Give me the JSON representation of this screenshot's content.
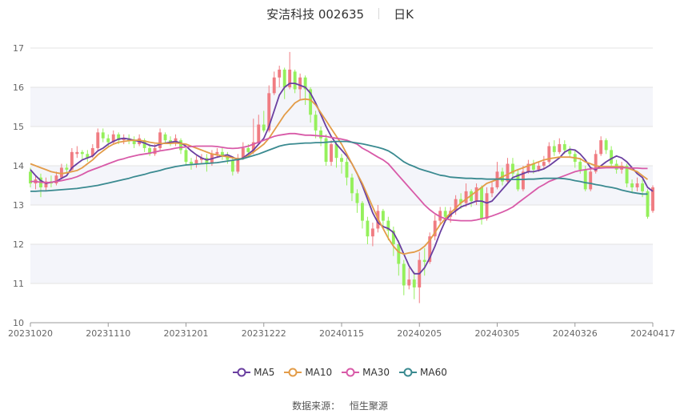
{
  "header": {
    "stock_name_code": "安洁科技 002635",
    "period": "日K"
  },
  "source": {
    "label": "数据来源：",
    "value": "恒生聚源"
  },
  "chart_data": {
    "type": "candlestick",
    "title": "安洁科技 002635",
    "ylim": [
      10,
      17
    ],
    "yticks": [
      "10",
      "11",
      "12",
      "13",
      "14",
      "15",
      "16",
      "17"
    ],
    "xticks": [
      {
        "label": "20231020",
        "index": 0
      },
      {
        "label": "20231110",
        "index": 15
      },
      {
        "label": "20231201",
        "index": 30
      },
      {
        "label": "20231222",
        "index": 45
      },
      {
        "label": "20240115",
        "index": 60
      },
      {
        "label": "20240205",
        "index": 75
      },
      {
        "label": "20240305",
        "index": 90
      },
      {
        "label": "20240326",
        "index": 105
      },
      {
        "label": "20240417",
        "index": 120
      }
    ],
    "up_color": "#f07c82",
    "down_color": "#95f05c",
    "candles": [
      [
        13.85,
        13.55,
        13.95,
        13.45
      ],
      [
        13.55,
        13.65,
        13.75,
        13.4
      ],
      [
        13.7,
        13.45,
        13.8,
        13.2
      ],
      [
        13.45,
        13.6,
        13.7,
        13.35
      ],
      [
        13.6,
        13.55,
        13.75,
        13.45
      ],
      [
        13.55,
        13.75,
        13.85,
        13.5
      ],
      [
        13.7,
        13.95,
        14.05,
        13.65
      ],
      [
        13.95,
        13.9,
        14.05,
        13.8
      ],
      [
        13.9,
        14.35,
        14.45,
        13.85
      ],
      [
        14.3,
        14.35,
        14.5,
        14.2
      ],
      [
        14.35,
        14.3,
        14.4,
        14.15
      ],
      [
        14.3,
        14.2,
        14.4,
        14.1
      ],
      [
        14.25,
        14.45,
        14.55,
        14.2
      ],
      [
        14.45,
        14.85,
        14.95,
        14.4
      ],
      [
        14.85,
        14.7,
        14.95,
        14.6
      ],
      [
        14.7,
        14.6,
        14.8,
        14.5
      ],
      [
        14.6,
        14.8,
        14.9,
        14.55
      ],
      [
        14.8,
        14.65,
        14.85,
        14.55
      ],
      [
        14.65,
        14.7,
        14.8,
        14.55
      ],
      [
        14.7,
        14.65,
        14.8,
        14.55
      ],
      [
        14.65,
        14.55,
        14.75,
        14.45
      ],
      [
        14.55,
        14.7,
        14.8,
        14.5
      ],
      [
        14.65,
        14.45,
        14.7,
        14.35
      ],
      [
        14.45,
        14.3,
        14.55,
        14.25
      ],
      [
        14.3,
        14.45,
        14.55,
        14.25
      ],
      [
        14.45,
        14.85,
        14.95,
        14.4
      ],
      [
        14.8,
        14.65,
        14.85,
        14.55
      ],
      [
        14.65,
        14.6,
        14.75,
        14.5
      ],
      [
        14.6,
        14.7,
        14.8,
        14.5
      ],
      [
        14.65,
        14.4,
        14.7,
        14.3
      ],
      [
        14.4,
        14.1,
        14.45,
        14.0
      ],
      [
        14.1,
        14.05,
        14.2,
        13.9
      ],
      [
        14.05,
        14.15,
        14.25,
        13.95
      ],
      [
        14.15,
        14.2,
        14.3,
        14.05
      ],
      [
        14.2,
        14.05,
        14.3,
        13.85
      ],
      [
        14.05,
        14.3,
        14.4,
        14.0
      ],
      [
        14.3,
        14.35,
        14.45,
        14.2
      ],
      [
        14.35,
        14.25,
        14.45,
        14.15
      ],
      [
        14.25,
        14.15,
        14.35,
        14.05
      ],
      [
        14.15,
        13.85,
        14.2,
        13.75
      ],
      [
        13.85,
        14.2,
        14.3,
        13.8
      ],
      [
        14.2,
        14.45,
        14.6,
        14.15
      ],
      [
        14.45,
        14.35,
        14.55,
        14.25
      ],
      [
        14.35,
        14.6,
        15.2,
        14.3
      ],
      [
        14.6,
        15.05,
        15.3,
        14.55
      ],
      [
        15.05,
        14.9,
        15.4,
        14.85
      ],
      [
        14.9,
        15.85,
        16.05,
        14.85
      ],
      [
        15.85,
        16.25,
        16.4,
        15.8
      ],
      [
        16.25,
        16.45,
        16.55,
        16.0
      ],
      [
        16.45,
        16.0,
        16.5,
        15.7
      ],
      [
        16.0,
        16.45,
        16.9,
        15.95
      ],
      [
        16.4,
        15.95,
        16.45,
        15.85
      ],
      [
        15.95,
        16.25,
        16.35,
        15.7
      ],
      [
        16.25,
        15.95,
        16.3,
        15.55
      ],
      [
        15.95,
        15.3,
        16.0,
        15.1
      ],
      [
        15.3,
        14.9,
        15.4,
        14.7
      ],
      [
        14.9,
        14.7,
        15.0,
        14.5
      ],
      [
        14.7,
        14.1,
        14.8,
        14.0
      ],
      [
        14.1,
        14.55,
        14.65,
        14.0
      ],
      [
        14.55,
        14.2,
        14.6,
        13.95
      ],
      [
        14.2,
        14.1,
        14.3,
        13.8
      ],
      [
        14.1,
        13.7,
        14.2,
        13.5
      ],
      [
        13.7,
        13.3,
        13.8,
        13.1
      ],
      [
        13.3,
        13.05,
        13.4,
        12.8
      ],
      [
        13.05,
        12.6,
        13.1,
        12.4
      ],
      [
        12.6,
        12.2,
        12.7,
        12.0
      ],
      [
        12.2,
        12.4,
        12.55,
        11.95
      ],
      [
        12.4,
        12.85,
        13.0,
        12.3
      ],
      [
        12.85,
        12.6,
        12.9,
        12.4
      ],
      [
        12.6,
        12.35,
        12.7,
        12.1
      ],
      [
        12.35,
        12.0,
        12.45,
        11.7
      ],
      [
        12.0,
        11.5,
        12.1,
        11.2
      ],
      [
        11.5,
        10.95,
        11.6,
        10.7
      ],
      [
        10.95,
        11.1,
        11.4,
        10.85
      ],
      [
        11.1,
        10.9,
        11.3,
        10.6
      ],
      [
        10.9,
        11.6,
        11.8,
        10.5
      ],
      [
        11.6,
        11.55,
        11.9,
        11.2
      ],
      [
        11.55,
        12.2,
        12.3,
        11.5
      ],
      [
        12.2,
        12.6,
        12.75,
        12.1
      ],
      [
        12.6,
        12.85,
        12.95,
        12.5
      ],
      [
        12.85,
        12.7,
        12.95,
        12.6
      ],
      [
        12.7,
        12.85,
        12.95,
        12.55
      ],
      [
        12.85,
        13.15,
        13.25,
        12.75
      ],
      [
        13.15,
        13.05,
        13.3,
        12.9
      ],
      [
        13.05,
        13.35,
        13.55,
        12.95
      ],
      [
        13.35,
        13.1,
        13.4,
        12.95
      ],
      [
        13.1,
        13.45,
        13.55,
        13.0
      ],
      [
        13.45,
        12.65,
        13.5,
        12.5
      ],
      [
        12.65,
        13.3,
        13.45,
        12.6
      ],
      [
        13.3,
        13.45,
        13.6,
        13.2
      ],
      [
        13.45,
        13.85,
        14.1,
        13.4
      ],
      [
        13.85,
        13.6,
        13.95,
        13.5
      ],
      [
        13.6,
        14.05,
        14.2,
        13.55
      ],
      [
        14.05,
        13.8,
        14.2,
        13.7
      ],
      [
        13.8,
        13.4,
        13.9,
        13.35
      ],
      [
        13.4,
        13.85,
        14.0,
        13.35
      ],
      [
        13.85,
        14.05,
        14.15,
        13.8
      ],
      [
        14.05,
        13.9,
        14.15,
        13.8
      ],
      [
        13.9,
        14.0,
        14.1,
        13.85
      ],
      [
        14.0,
        14.1,
        14.25,
        13.9
      ],
      [
        14.1,
        14.5,
        14.6,
        14.05
      ],
      [
        14.5,
        14.35,
        14.65,
        14.25
      ],
      [
        14.35,
        14.55,
        14.7,
        14.3
      ],
      [
        14.55,
        14.4,
        14.65,
        14.3
      ],
      [
        14.4,
        14.3,
        14.5,
        14.2
      ],
      [
        14.3,
        14.1,
        14.4,
        13.95
      ],
      [
        14.1,
        13.9,
        14.2,
        13.8
      ],
      [
        13.9,
        13.4,
        14.0,
        13.35
      ],
      [
        13.4,
        13.85,
        13.95,
        13.35
      ],
      [
        13.85,
        14.3,
        14.4,
        13.8
      ],
      [
        14.3,
        14.65,
        14.75,
        14.25
      ],
      [
        14.65,
        14.4,
        14.7,
        14.3
      ],
      [
        14.4,
        14.05,
        14.5,
        13.95
      ],
      [
        14.05,
        13.9,
        14.15,
        13.8
      ],
      [
        13.9,
        14.0,
        14.1,
        13.8
      ],
      [
        14.0,
        13.55,
        14.05,
        13.45
      ],
      [
        13.55,
        13.45,
        13.65,
        13.3
      ],
      [
        13.45,
        13.55,
        13.7,
        13.35
      ],
      [
        13.55,
        13.35,
        13.65,
        13.2
      ],
      [
        13.35,
        12.7,
        13.4,
        12.65
      ],
      [
        12.85,
        13.45,
        13.5,
        12.8
      ]
    ],
    "series": [
      {
        "name": "MA5",
        "color": "#6a3fa0",
        "values": [
          13.9,
          13.75,
          13.62,
          13.55,
          13.58,
          13.6,
          13.68,
          13.75,
          13.95,
          14.05,
          14.15,
          14.2,
          14.25,
          14.38,
          14.45,
          14.55,
          14.62,
          14.68,
          14.7,
          14.68,
          14.65,
          14.62,
          14.58,
          14.52,
          14.5,
          14.55,
          14.58,
          14.6,
          14.62,
          14.58,
          14.5,
          14.38,
          14.28,
          14.2,
          14.15,
          14.18,
          14.22,
          14.25,
          14.28,
          14.22,
          14.15,
          14.2,
          14.3,
          14.4,
          14.55,
          14.7,
          15.0,
          15.4,
          15.8,
          16.0,
          16.1,
          16.1,
          16.05,
          16.0,
          15.85,
          15.6,
          15.3,
          15.0,
          14.75,
          14.55,
          14.4,
          14.25,
          14.05,
          13.8,
          13.5,
          13.15,
          12.8,
          12.55,
          12.45,
          12.4,
          12.3,
          12.05,
          11.75,
          11.45,
          11.25,
          11.25,
          11.4,
          11.65,
          11.95,
          12.3,
          12.6,
          12.75,
          12.85,
          12.95,
          13.0,
          13.05,
          13.1,
          13.1,
          13.05,
          13.1,
          13.25,
          13.4,
          13.55,
          13.7,
          13.75,
          13.8,
          13.85,
          13.85,
          13.88,
          13.92,
          14.0,
          14.1,
          14.2,
          14.35,
          14.42,
          14.4,
          14.3,
          14.15,
          13.95,
          13.9,
          14.0,
          14.1,
          14.18,
          14.25,
          14.2,
          14.1,
          13.95,
          13.8,
          13.7,
          13.45,
          13.35
        ]
      },
      {
        "name": "MA10",
        "color": "#e39c48",
        "values": [
          14.05,
          14.0,
          13.95,
          13.9,
          13.85,
          13.82,
          13.8,
          13.82,
          13.85,
          13.88,
          13.95,
          14.05,
          14.15,
          14.28,
          14.38,
          14.48,
          14.55,
          14.6,
          14.62,
          14.64,
          14.65,
          14.65,
          14.63,
          14.6,
          14.58,
          14.57,
          14.57,
          14.57,
          14.58,
          14.57,
          14.55,
          14.5,
          14.45,
          14.4,
          14.35,
          14.3,
          14.28,
          14.25,
          14.23,
          14.2,
          14.18,
          14.18,
          14.25,
          14.35,
          14.45,
          14.55,
          14.7,
          14.9,
          15.1,
          15.3,
          15.45,
          15.6,
          15.68,
          15.7,
          15.68,
          15.55,
          15.35,
          15.15,
          14.95,
          14.75,
          14.55,
          14.3,
          14.05,
          13.8,
          13.55,
          13.25,
          12.95,
          12.65,
          12.4,
          12.15,
          11.95,
          11.8,
          11.75,
          11.78,
          11.8,
          11.85,
          11.95,
          12.1,
          12.3,
          12.5,
          12.65,
          12.8,
          12.92,
          13.05,
          13.15,
          13.25,
          13.35,
          13.45,
          13.55,
          13.6,
          13.65,
          13.72,
          13.78,
          13.85,
          13.9,
          13.95,
          14.0,
          14.05,
          14.1,
          14.15,
          14.18,
          14.2,
          14.22,
          14.22,
          14.22,
          14.2,
          14.18,
          14.1,
          14.05,
          14.0,
          13.98,
          13.98,
          13.98,
          13.98,
          13.98,
          13.95,
          13.9,
          13.85,
          13.75,
          13.65
        ]
      },
      {
        "name": "MA30",
        "color": "#d85aa8",
        "values": [
          13.6,
          13.6,
          13.58,
          13.57,
          13.58,
          13.6,
          13.62,
          13.65,
          13.68,
          13.72,
          13.78,
          13.85,
          13.9,
          13.95,
          14.0,
          14.05,
          14.1,
          14.15,
          14.18,
          14.22,
          14.25,
          14.28,
          14.3,
          14.32,
          14.35,
          14.38,
          14.4,
          14.42,
          14.45,
          14.47,
          14.48,
          14.49,
          14.5,
          14.5,
          14.5,
          14.5,
          14.49,
          14.47,
          14.45,
          14.44,
          14.45,
          14.47,
          14.5,
          14.55,
          14.6,
          14.65,
          14.7,
          14.75,
          14.78,
          14.8,
          14.82,
          14.82,
          14.8,
          14.78,
          14.78,
          14.77,
          14.76,
          14.75,
          14.72,
          14.7,
          14.68,
          14.65,
          14.6,
          14.55,
          14.45,
          14.38,
          14.3,
          14.22,
          14.15,
          14.05,
          13.9,
          13.75,
          13.6,
          13.45,
          13.3,
          13.15,
          13.0,
          12.88,
          12.78,
          12.7,
          12.65,
          12.62,
          12.61,
          12.6,
          12.6,
          12.6,
          12.62,
          12.65,
          12.68,
          12.72,
          12.77,
          12.82,
          12.88,
          12.95,
          13.05,
          13.15,
          13.25,
          13.35,
          13.45,
          13.52,
          13.6,
          13.65,
          13.7,
          13.75,
          13.8,
          13.85,
          13.88,
          13.9,
          13.92,
          13.93,
          13.94,
          13.95,
          13.95,
          13.95,
          13.95,
          13.95,
          13.94,
          13.94,
          13.93,
          13.93
        ]
      },
      {
        "name": "MA60",
        "color": "#3a8a90",
        "values": [
          13.35,
          13.35,
          13.36,
          13.36,
          13.37,
          13.38,
          13.39,
          13.4,
          13.41,
          13.42,
          13.44,
          13.46,
          13.48,
          13.5,
          13.53,
          13.56,
          13.59,
          13.62,
          13.65,
          13.68,
          13.72,
          13.75,
          13.78,
          13.82,
          13.85,
          13.88,
          13.92,
          13.95,
          13.98,
          14.0,
          14.02,
          14.03,
          14.04,
          14.05,
          14.06,
          14.07,
          14.08,
          14.1,
          14.12,
          14.14,
          14.16,
          14.18,
          14.22,
          14.26,
          14.3,
          14.35,
          14.4,
          14.45,
          14.5,
          14.53,
          14.55,
          14.56,
          14.57,
          14.58,
          14.58,
          14.59,
          14.59,
          14.6,
          14.61,
          14.62,
          14.62,
          14.62,
          14.6,
          14.58,
          14.56,
          14.53,
          14.5,
          14.47,
          14.43,
          14.38,
          14.3,
          14.2,
          14.1,
          14.03,
          13.98,
          13.92,
          13.88,
          13.84,
          13.8,
          13.76,
          13.74,
          13.71,
          13.7,
          13.69,
          13.68,
          13.68,
          13.67,
          13.67,
          13.66,
          13.66,
          13.66,
          13.66,
          13.65,
          13.65,
          13.65,
          13.65,
          13.66,
          13.66,
          13.67,
          13.68,
          13.68,
          13.68,
          13.68,
          13.67,
          13.65,
          13.62,
          13.6,
          13.57,
          13.55,
          13.52,
          13.5,
          13.47,
          13.45,
          13.42,
          13.38,
          13.35,
          13.32,
          13.3,
          13.28,
          13.28
        ]
      }
    ]
  }
}
